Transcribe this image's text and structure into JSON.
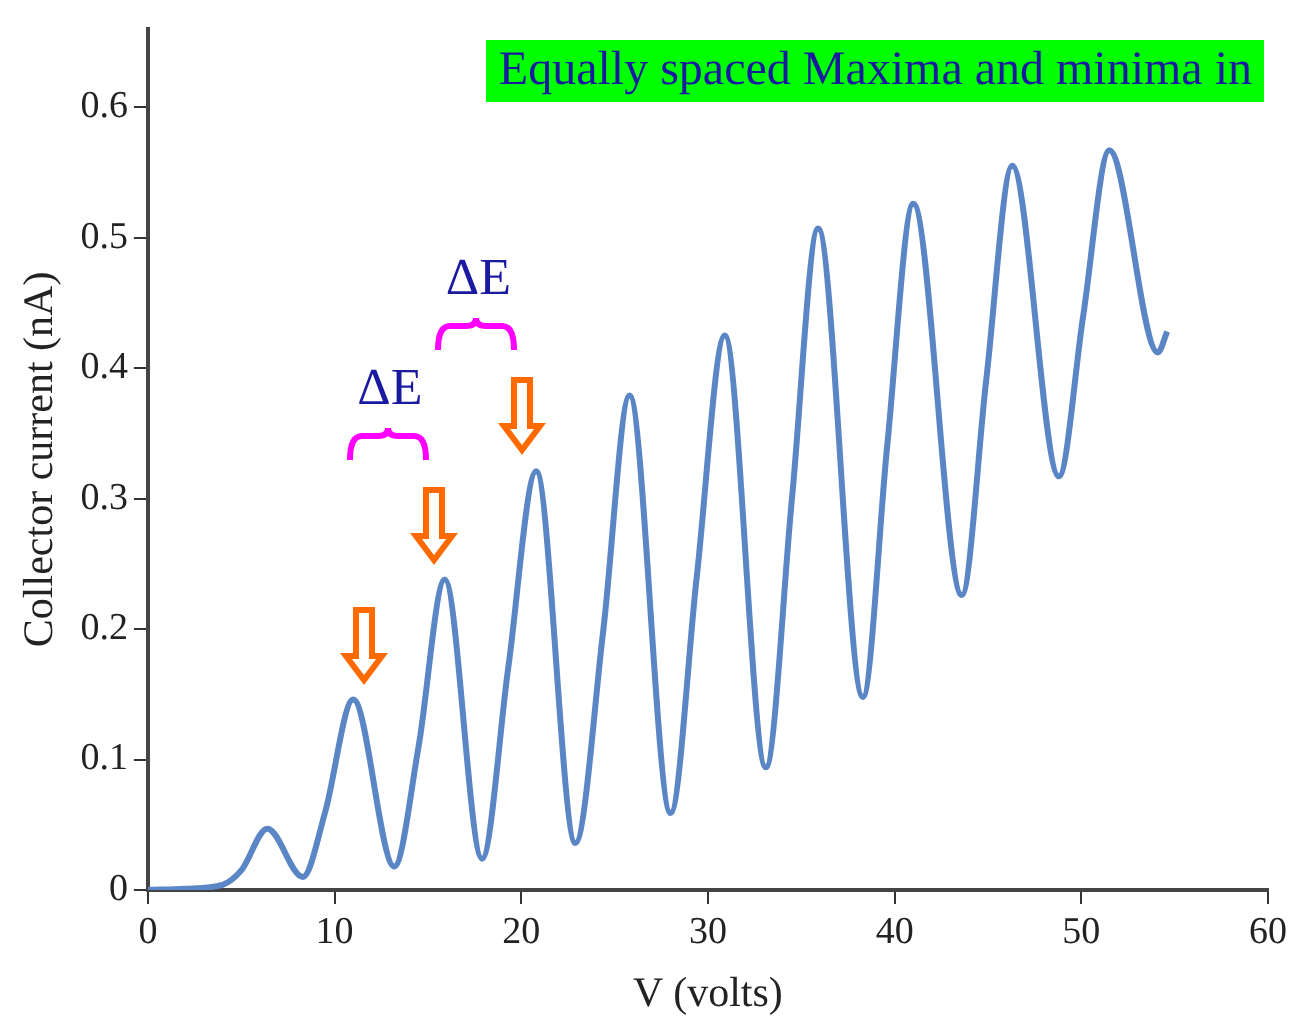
{
  "chart_data": {
    "type": "line",
    "xlabel": "V (volts)",
    "ylabel": "Collector current (nA)",
    "x": [
      0,
      2,
      4,
      5,
      6.4,
      8.3,
      9.5,
      11.0,
      13.2,
      14.5,
      15.9,
      17.9,
      19.3,
      20.8,
      22.9,
      24.4,
      25.8,
      28.0,
      29.4,
      30.9,
      33.1,
      34.5,
      35.9,
      38.3,
      39.6,
      41.0,
      43.6,
      44.9,
      46.3,
      48.8,
      50.1,
      51.5,
      54.1,
      54.6
    ],
    "series": [
      {
        "color": "#5b86c5",
        "values": [
          0,
          0.001,
          0.004,
          0.015,
          0.047,
          0.01,
          0.06,
          0.146,
          0.018,
          0.11,
          0.238,
          0.024,
          0.17,
          0.321,
          0.036,
          0.2,
          0.379,
          0.059,
          0.24,
          0.425,
          0.094,
          0.3,
          0.507,
          0.148,
          0.34,
          0.526,
          0.226,
          0.39,
          0.555,
          0.317,
          0.44,
          0.567,
          0.412,
          0.428
        ]
      }
    ],
    "xlim": [
      0,
      60
    ],
    "xticks": [
      0,
      10,
      20,
      30,
      40,
      50,
      60
    ],
    "ylim": [
      0,
      0.66
    ],
    "yticks": [
      0,
      0.1,
      0.2,
      0.3,
      0.4,
      0.5,
      0.6
    ],
    "grid": false,
    "legend": false,
    "marker": "none",
    "line_style": "solid",
    "annotations": [
      "Equally spaced Maxima and minima in",
      "ΔE",
      "ΔE"
    ]
  }
}
